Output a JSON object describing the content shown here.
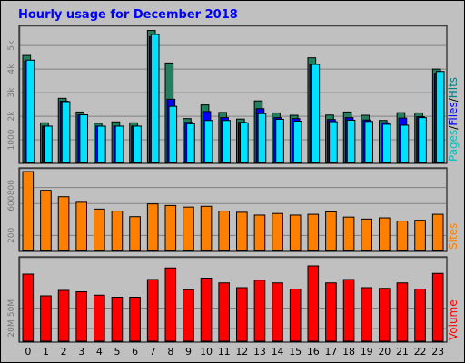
{
  "chart_data": {
    "type": "bar",
    "title": "Hourly usage for December 2018",
    "categories": [
      "0",
      "1",
      "2",
      "3",
      "4",
      "5",
      "6",
      "7",
      "8",
      "9",
      "10",
      "11",
      "12",
      "13",
      "14",
      "15",
      "16",
      "17",
      "18",
      "19",
      "20",
      "21",
      "22",
      "23"
    ],
    "panels": [
      {
        "id": "requests",
        "ylim": [
          0,
          5700
        ],
        "ticks": [
          "1000",
          "2000",
          "3000",
          "4000",
          "5000"
        ],
        "tick_values": [
          1000,
          2000,
          3000,
          4000,
          5000
        ],
        "tick_labels": [
          "1000",
          "2k",
          "3k",
          "4k",
          "5k"
        ],
        "legend": [
          {
            "name": "Pages",
            "color": "#00C0C0"
          },
          {
            "name": "Files",
            "color": "#0000FF"
          },
          {
            "name": "Hits",
            "color": "#008080"
          }
        ],
        "series": [
          {
            "name": "Hits",
            "color": "#208060",
            "values": [
              4580,
              1720,
              2760,
              2180,
              1700,
              1760,
              1720,
              5640,
              4260,
              1900,
              2480,
              2160,
              1880,
              2650,
              2140,
              2040,
              4480,
              2050,
              2180,
              2040,
              1820,
              2150,
              2140,
              4000
            ]
          },
          {
            "name": "Files",
            "color": "#0000FF",
            "values": [
              4340,
              1580,
              2640,
              2060,
              1580,
              1580,
              1580,
              5380,
              2720,
              1740,
              2200,
              1940,
              1740,
              2320,
              1940,
              1900,
              4180,
              1860,
              1940,
              1840,
              1720,
              1920,
              1980,
              3820
            ]
          },
          {
            "name": "Pages",
            "color": "#00E0FF",
            "values": [
              4380,
              1580,
              2620,
              2060,
              1580,
              1580,
              1580,
              5470,
              2420,
              1680,
              1820,
              1820,
              1720,
              2110,
              1870,
              1790,
              4200,
              1770,
              1830,
              1780,
              1660,
              1620,
              1940,
              3900
            ]
          }
        ]
      },
      {
        "id": "sites",
        "ylim": [
          0,
          1000
        ],
        "tick_values": [
          200,
          600,
          800
        ],
        "tick_labels": [
          "200",
          "600",
          "800"
        ],
        "legend": [
          {
            "name": "Sites",
            "color": "#FF8000"
          }
        ],
        "series": [
          {
            "name": "Sites",
            "color": "#FF8000",
            "values": [
              1000,
              765,
              685,
              615,
              530,
              505,
              435,
              595,
              575,
              555,
              565,
              505,
              490,
              455,
              475,
              455,
              465,
              495,
              430,
              405,
              420,
              380,
              390,
              465
            ]
          }
        ]
      },
      {
        "id": "volume",
        "ylim": [
          0,
          120
        ],
        "tick_values": [
          20,
          50
        ],
        "tick_labels": [
          "20M",
          "50M"
        ],
        "legend": [
          {
            "name": "Volume",
            "color": "#FF0000"
          }
        ],
        "series": [
          {
            "name": "Volume",
            "color": "#FF0000",
            "values": [
              100,
              68,
              76,
              74,
              69,
              66,
              66,
              92,
              109,
              77,
              94,
              87,
              80,
              91,
              87,
              78,
              112,
              87,
              92,
              80,
              79,
              87,
              78,
              101
            ]
          }
        ]
      }
    ]
  }
}
